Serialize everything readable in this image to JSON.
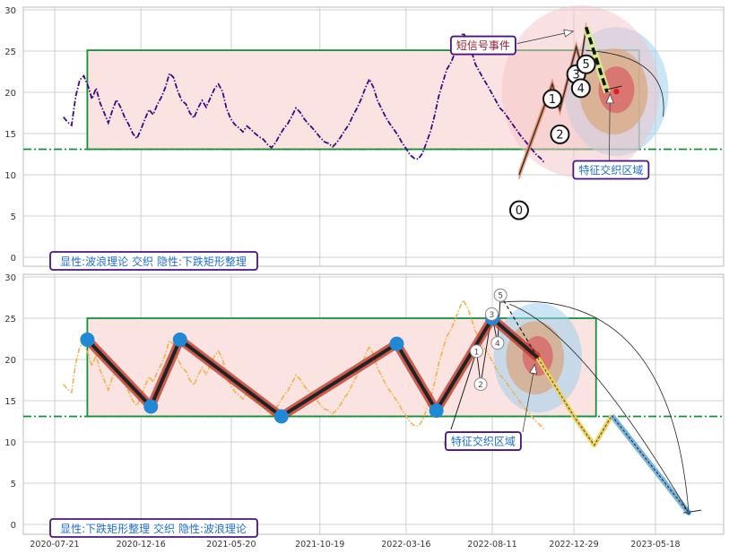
{
  "chart_data": [
    {
      "type": "line",
      "panel": "top",
      "ylim": [
        -1,
        30.5
      ],
      "yticks": [
        "0",
        "5",
        "10",
        "15",
        "20",
        "25",
        "30"
      ],
      "grid": true,
      "reference_line_y": 13.1,
      "box": {
        "x_start": "2020-09-15",
        "x_end": "2023-04-20",
        "y_low": 13.1,
        "y_high": 25.1
      },
      "price_series": {
        "x_start": "2020-08-05",
        "x_end": "2022-11-05",
        "step_days": 7,
        "values": [
          17.0,
          16.4,
          16.0,
          19.5,
          21.5,
          22.0,
          20.8,
          19.2,
          20.5,
          18.7,
          17.5,
          16.3,
          17.8,
          19.1,
          18.2,
          17.0,
          16.1,
          15.0,
          14.4,
          15.5,
          16.8,
          17.9,
          17.3,
          18.5,
          19.4,
          20.6,
          22.3,
          21.8,
          20.2,
          19.0,
          18.6,
          17.5,
          16.9,
          18.1,
          19.0,
          18.2,
          19.3,
          20.4,
          21.0,
          20.1,
          18.0,
          16.8,
          16.1,
          15.7,
          15.2,
          15.9,
          15.5,
          15.0,
          14.6,
          14.3,
          13.7,
          13.3,
          13.9,
          14.8,
          15.6,
          16.2,
          17.1,
          18.1,
          17.6,
          16.8,
          16.2,
          15.7,
          15.1,
          14.5,
          14.0,
          13.8,
          13.4,
          13.9,
          14.6,
          15.4,
          16.1,
          17.2,
          18.1,
          19.2,
          20.5,
          21.6,
          20.6,
          19.0,
          18.0,
          17.0,
          16.2,
          15.5,
          14.8,
          13.9,
          13.2,
          12.4,
          12.0,
          11.9,
          12.6,
          13.9,
          15.3,
          17.2,
          19.5,
          21.2,
          22.8,
          23.6,
          24.8,
          26.1,
          27.2,
          26.4,
          25.0,
          23.4,
          22.5,
          21.6,
          20.8,
          19.9,
          19.0,
          18.1,
          17.6,
          16.9,
          16.2,
          15.5,
          14.8,
          14.2,
          13.6,
          13.0,
          12.4,
          12.0,
          11.4
        ]
      },
      "wave_path": {
        "points": [
          {
            "x": "2022-09-26",
            "y": 10.0
          },
          {
            "x": "2022-11-22",
            "y": 21.0
          },
          {
            "x": "2022-12-05",
            "y": 17.9
          },
          {
            "x": "2023-01-02",
            "y": 25.5
          },
          {
            "x": "2023-01-10",
            "y": 23.5
          },
          {
            "x": "2023-01-19",
            "y": 27.9
          }
        ],
        "labels": [
          "0",
          "1",
          "2",
          "3",
          "4",
          "5"
        ],
        "label_offsets": [
          [
            0,
            4.3
          ],
          [
            0,
            1.8
          ],
          [
            0,
            3.0
          ],
          [
            0,
            3.3
          ],
          [
            0,
            3.0
          ],
          [
            0,
            4.5
          ]
        ]
      },
      "dashed_projection": [
        {
          "x": "2023-01-19",
          "y": 27.9
        },
        {
          "x": "2023-02-24",
          "y": 20.0
        }
      ],
      "target_zone": {
        "x": "2023-03-12",
        "y": 20.1
      },
      "annotations": [
        {
          "id": "short-signal",
          "text": "短信号事件",
          "box_x": "2022-06-01",
          "box_y": 25.7,
          "arrow_to_x": "2022-12-28",
          "arrow_to_y": 27.4
        },
        {
          "id": "feature-zone",
          "text": "特征交织区域",
          "box_x": "2022-12-28",
          "box_y": 10.6,
          "arrow_to_x": "2023-03-01",
          "arrow_to_y": 19.8
        }
      ],
      "caption": "显性:波浪理论 交织 隐性:下跌矩形整理"
    },
    {
      "type": "line",
      "panel": "bottom",
      "ylim": [
        -1,
        30.5
      ],
      "yticks": [
        "0",
        "5",
        "10",
        "15",
        "20",
        "25",
        "30"
      ],
      "xticks": [
        {
          "label": "2020-07-21",
          "x": "2020-07-21"
        },
        {
          "label": "2020-12-16",
          "x": "2020-12-16"
        },
        {
          "label": "2021-05-20",
          "x": "2021-05-20"
        },
        {
          "label": "2021-10-19",
          "x": "2021-10-19"
        },
        {
          "label": "2022-03-16",
          "x": "2022-03-16"
        },
        {
          "label": "2022-08-11",
          "x": "2022-08-11"
        },
        {
          "label": "2022-12-29",
          "x": "2022-12-29"
        },
        {
          "label": "2023-05-18",
          "x": "2023-05-18"
        }
      ],
      "grid": true,
      "reference_line_y": 13.1,
      "box": {
        "x_start": "2020-09-15",
        "x_end": "2023-02-05",
        "y_low": 13.1,
        "y_high": 25.0
      },
      "rectangle_path": [
        {
          "x": "2020-09-15",
          "y": 22.4
        },
        {
          "x": "2021-01-02",
          "y": 14.3
        },
        {
          "x": "2021-02-21",
          "y": 22.4
        },
        {
          "x": "2021-08-14",
          "y": 13.1
        },
        {
          "x": "2022-02-28",
          "y": 21.9
        },
        {
          "x": "2022-05-07",
          "y": 13.8
        },
        {
          "x": "2022-08-11",
          "y": 25.0
        },
        {
          "x": "2022-10-28",
          "y": 20.2
        }
      ],
      "wave_points": [
        {
          "label": "0",
          "x": "2022-06-01",
          "y": 11.5,
          "label_y": 9.8
        },
        {
          "label": "1",
          "x": "2022-07-15",
          "y": 21.0,
          "label_y": 21.0
        },
        {
          "label": "2",
          "x": "2022-07-22",
          "y": 17.0,
          "label_y": 17.0
        },
        {
          "label": "3",
          "x": "2022-08-10",
          "y": 25.5,
          "label_y": 25.5
        },
        {
          "label": "4",
          "x": "2022-08-20",
          "y": 22.0,
          "label_y": 22.0
        },
        {
          "label": "5",
          "x": "2022-08-25",
          "y": 27.8,
          "label_y": 27.8
        }
      ],
      "projection_path": [
        {
          "x": "2022-10-28",
          "y": 20.2
        },
        {
          "x": "2022-12-30",
          "y": 13.0
        },
        {
          "x": "2023-02-02",
          "y": 9.6
        },
        {
          "x": "2023-03-04",
          "y": 13.2
        },
        {
          "x": "2023-07-14",
          "y": 1.4
        }
      ],
      "arc_end": {
        "x": "2023-07-14",
        "y": 1.4
      },
      "target_zone": {
        "x": "2022-10-28",
        "y": 20.2
      },
      "annotations": [
        {
          "id": "feature-zone",
          "text": "特征交织区域",
          "box_x": "2022-06-01",
          "box_y": 10.1,
          "arrow_to_x": "2022-10-23",
          "arrow_to_y": 19.4
        }
      ],
      "caption": "显性:下跌矩形整理 交织 隐性:波浪理论"
    }
  ],
  "colors": {
    "grid": "#cfcfcf",
    "axis_text": "#333333",
    "box_fill": "#fbe3e1",
    "box_stroke": "#12913a",
    "ref_line": "#12913a",
    "price_top": "#3c0a82",
    "price_bottom": "#f0b34a",
    "wave_fill": "#f4a07a",
    "wave_stroke": "#f07f54",
    "rect_path": "#222222",
    "rect_path_glow": "#c0392b",
    "node_fill": "#2088d4",
    "label_text": "#4a4a4a",
    "caption_text": "#1f6fd1",
    "caption_border": "#4b1380",
    "annot_text_red": "#9b1c2c",
    "annot_text_blue": "#1f6fd1",
    "zone_blue": "#9dcfee",
    "zone_pink": "#f4c3c7",
    "zone_red": "#d86b6b",
    "zone_tan": "#d8a880",
    "proj_fill": "#79b4dd",
    "proj_zigzag": "#f2d35a"
  }
}
